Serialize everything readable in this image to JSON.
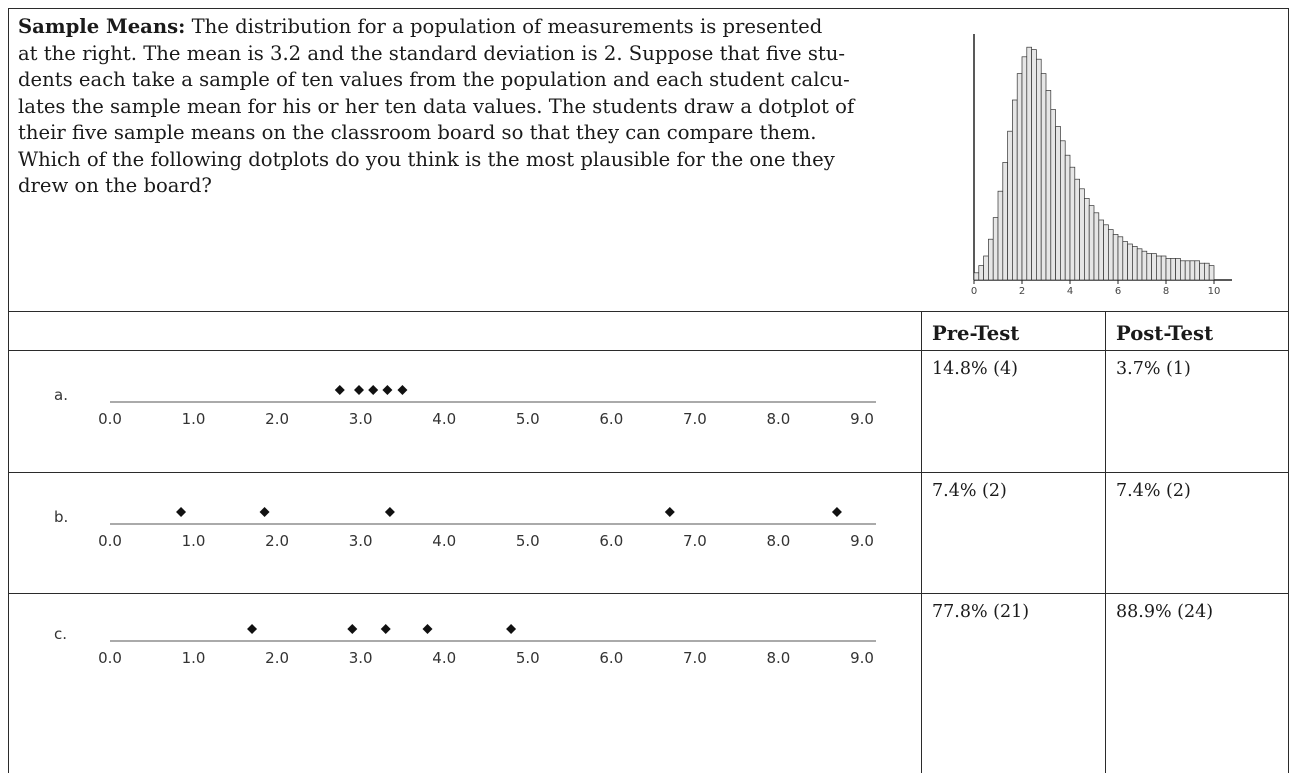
{
  "question": {
    "title": "Sample Means:",
    "lines": [
      "The distribution for a population of measurements is presented",
      "at the right. The mean is 3.2 and the standard deviation is 2. Suppose that five stu-",
      "dents each take a sample of ten values from the population and each student calcu-",
      "lates the sample mean for his or her ten data values. The students draw a dotplot of",
      "their five sample means on the classroom board so that they can compare them.",
      "Which of the following dotplots do you think is the most plausible for the one they",
      "drew on the board?"
    ]
  },
  "table": {
    "headers": [
      "",
      "Pre-Test",
      "Post-Test"
    ],
    "rows": [
      {
        "label": "a.",
        "pre": "14.8% (4)",
        "post": "3.7% (1)"
      },
      {
        "label": "b.",
        "pre": "7.4% (2)",
        "post": "7.4% (2)"
      },
      {
        "label": "c.",
        "pre": "77.8% (21)",
        "post": "88.9% (24)"
      }
    ]
  },
  "axis_labels": [
    "0.0",
    "1.0",
    "2.0",
    "3.0",
    "4.0",
    "5.0",
    "6.0",
    "7.0",
    "8.0",
    "9.0"
  ],
  "chart_data": [
    {
      "type": "bar",
      "chart_id": "population-histogram",
      "x_tick_labels": [
        "0",
        "2",
        "4",
        "6",
        "8",
        "10"
      ],
      "xlim": [
        0,
        10
      ],
      "bin_width": 0.2,
      "values": [
        3,
        6,
        10,
        17,
        26,
        37,
        49,
        62,
        75,
        86,
        93,
        97,
        96,
        92,
        86,
        79,
        71,
        64,
        58,
        52,
        47,
        42,
        38,
        34,
        31,
        28,
        25,
        23,
        21,
        19,
        18,
        16,
        15,
        14,
        13,
        12,
        11,
        11,
        10,
        10,
        9,
        9,
        9,
        8,
        8,
        8,
        8,
        7,
        7,
        6
      ],
      "ymax": 100,
      "fill": "#e6e6e6",
      "stroke": "#333333"
    },
    {
      "type": "scatter",
      "chart_id": "dotplot-a",
      "xlim": [
        0,
        9
      ],
      "values": [
        2.75,
        2.98,
        3.15,
        3.32,
        3.5
      ]
    },
    {
      "type": "scatter",
      "chart_id": "dotplot-b",
      "xlim": [
        0,
        9
      ],
      "values": [
        0.85,
        1.85,
        3.35,
        6.7,
        8.7
      ]
    },
    {
      "type": "scatter",
      "chart_id": "dotplot-c",
      "xlim": [
        0,
        9
      ],
      "values": [
        1.7,
        2.9,
        3.3,
        3.8,
        4.8
      ]
    }
  ]
}
